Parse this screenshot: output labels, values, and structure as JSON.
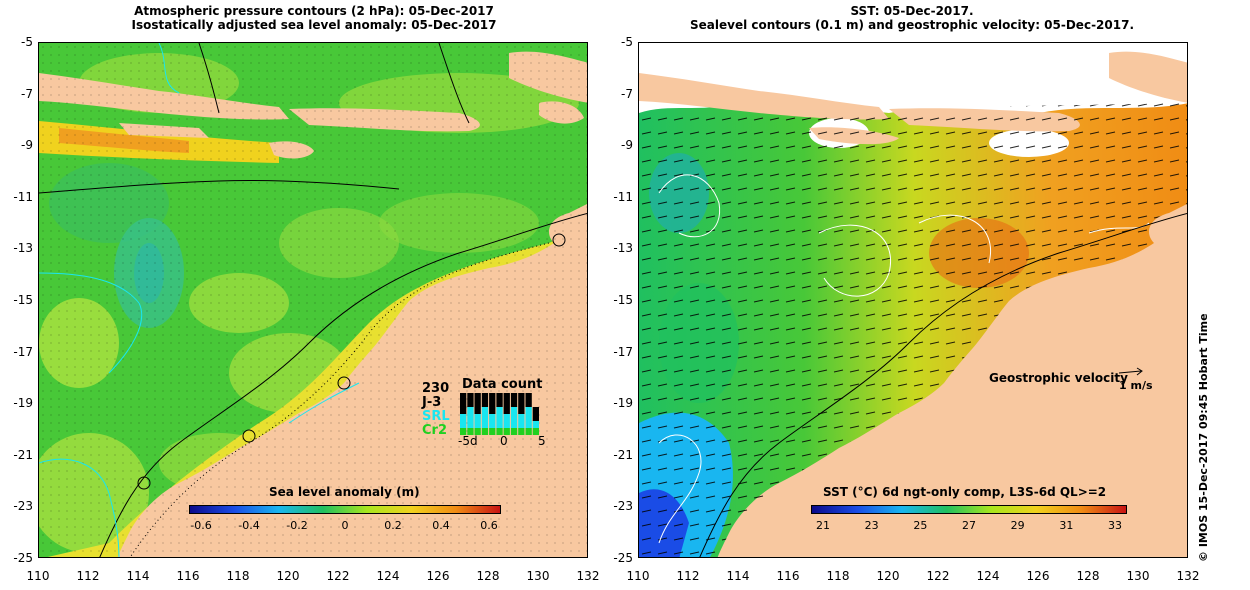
{
  "left_panel": {
    "title_line1": "Atmospheric pressure contours (2 hPa): 05-Dec-2017",
    "title_line2": "Isostatically adjusted sea level anomaly: 05-Dec-2017",
    "colorbar_title": "Sea level anomaly (m)",
    "colorbar_ticks": [
      "-0.6",
      "-0.4",
      "-0.2",
      "0",
      "0.2",
      "0.4",
      "0.6"
    ],
    "colorbar_colors": [
      "#0a0a8c",
      "#1a4ce6",
      "#19b6f0",
      "#20c060",
      "#a8e61e",
      "#f0d21e",
      "#f08c14",
      "#c81414"
    ],
    "data_count": {
      "title": "Data count",
      "count": "230",
      "sat1": "J-3",
      "sat2": "SRL",
      "sat3": "Cr2",
      "axis_ticks": [
        "-5d",
        "0",
        "5"
      ],
      "bars_j3": [
        3,
        3,
        4,
        3,
        4,
        3,
        4,
        3,
        3,
        3,
        2
      ],
      "bars_srl": [
        2,
        3,
        2,
        3,
        2,
        3,
        2,
        3,
        2,
        3,
        1
      ],
      "bars_cr2": [
        1,
        1,
        1,
        1,
        1,
        1,
        1,
        1,
        1,
        1,
        1
      ],
      "colors": {
        "j3": "#000000",
        "srl": "#19e6f0",
        "cr2": "#20d020"
      }
    }
  },
  "right_panel": {
    "title_line1": "SST: 05-Dec-2017.",
    "title_line2": "Sealevel contours (0.1 m) and geostrophic velocity: 05-Dec-2017.",
    "colorbar_title": "SST (°C) 6d ngt-only comp, L3S-6d QL>=2",
    "colorbar_ticks": [
      "21",
      "23",
      "25",
      "27",
      "29",
      "31",
      "33"
    ],
    "colorbar_colors": [
      "#0a0a8c",
      "#1a4ce6",
      "#19b6f0",
      "#20c060",
      "#a8e61e",
      "#f0d21e",
      "#f08c14",
      "#c81414"
    ],
    "velocity_label": "Geostrophic velocity",
    "velocity_scale": "1 m/s"
  },
  "axes": {
    "y_ticks": [
      "-5",
      "-7",
      "-9",
      "-11",
      "-13",
      "-15",
      "-17",
      "-19",
      "-21",
      "-23",
      "-25"
    ],
    "x_ticks": [
      "110",
      "112",
      "114",
      "116",
      "118",
      "120",
      "122",
      "124",
      "126",
      "128",
      "130",
      "132"
    ]
  },
  "side_text": "© IMOS 15-Dec-2017 09:45 Hobart Time",
  "colors": {
    "land": "#f8c8a0",
    "ocean_green": "#48c838",
    "ocean_light": "#a8e040",
    "ocean_yellow": "#e8e030",
    "ocean_orange": "#f0a020",
    "cloud": "#ffffff"
  },
  "station_markers": [
    {
      "lon": 130.9,
      "lat": -12.7
    },
    {
      "lon": 122.2,
      "lat": -18.2
    },
    {
      "lon": 118.4,
      "lat": -20.3
    },
    {
      "lon": 114.2,
      "lat": -22.1
    }
  ]
}
